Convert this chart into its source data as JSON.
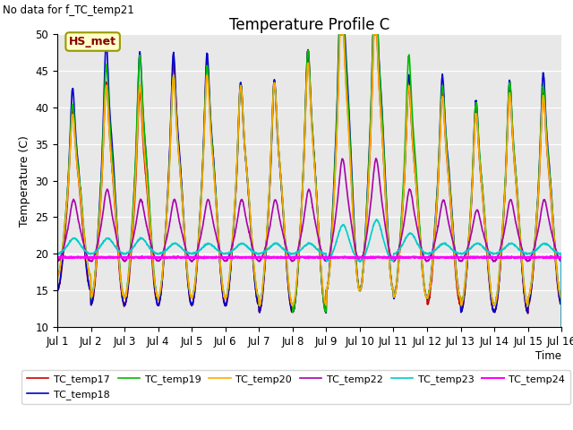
{
  "title": "Temperature Profile C",
  "top_left_text": "No data for f_TC_temp21",
  "xlabel": "Time",
  "ylabel": "Temperature (C)",
  "ylim": [
    10,
    50
  ],
  "xlim": [
    0,
    15
  ],
  "xtick_labels": [
    "Jul 1",
    "Jul 2",
    "Jul 3",
    "Jul 4",
    "Jul 5",
    "Jul 6",
    "Jul 7",
    "Jul 8",
    "Jul 9",
    "Jul 10",
    "Jul 11",
    "Jul 12",
    "Jul 13",
    "Jul 14",
    "Jul 15",
    "Jul 16"
  ],
  "xtick_positions": [
    0,
    1,
    2,
    3,
    4,
    5,
    6,
    7,
    8,
    9,
    10,
    11,
    12,
    13,
    14,
    15
  ],
  "annotation": "HS_met",
  "bg_color": "#e8e8e8",
  "series": [
    {
      "name": "TC_temp17",
      "color": "#cc0000",
      "lw": 1.2
    },
    {
      "name": "TC_temp18",
      "color": "#0000cc",
      "lw": 1.2
    },
    {
      "name": "TC_temp19",
      "color": "#00bb00",
      "lw": 1.2
    },
    {
      "name": "TC_temp20",
      "color": "#ffaa00",
      "lw": 1.2
    },
    {
      "name": "TC_temp22",
      "color": "#aa00aa",
      "lw": 1.2
    },
    {
      "name": "TC_temp23",
      "color": "#00cccc",
      "lw": 1.2
    },
    {
      "name": "TC_temp24",
      "color": "#ff00ff",
      "lw": 1.5
    }
  ],
  "grid_color": "#ffffff",
  "title_fontsize": 12
}
